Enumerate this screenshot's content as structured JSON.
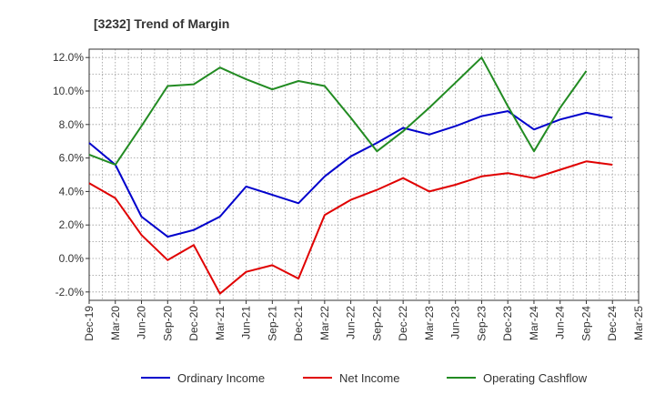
{
  "chart_data": {
    "type": "line",
    "title": "[3232]  Trend of Margin",
    "xlabel": "",
    "ylabel": "",
    "ylim": [
      -2.5,
      12.5
    ],
    "yticks": [
      -2.0,
      0.0,
      2.0,
      4.0,
      6.0,
      8.0,
      10.0,
      12.0
    ],
    "ytick_labels": [
      "-2.0%",
      "0.0%",
      "2.0%",
      "4.0%",
      "6.0%",
      "8.0%",
      "10.0%",
      "12.0%"
    ],
    "categories": [
      "Dec-19",
      "Mar-20",
      "Jun-20",
      "Sep-20",
      "Dec-20",
      "Mar-21",
      "Jun-21",
      "Sep-21",
      "Dec-21",
      "Mar-22",
      "Jun-22",
      "Sep-22",
      "Dec-22",
      "Mar-23",
      "Jun-23",
      "Sep-23",
      "Dec-23",
      "Mar-24",
      "Jun-24",
      "Sep-24",
      "Dec-24",
      "Mar-25"
    ],
    "grid": true,
    "legend_position": "bottom",
    "series": [
      {
        "name": "Ordinary Income",
        "color": "#0000cc",
        "values": [
          6.9,
          5.6,
          2.5,
          1.3,
          1.7,
          2.5,
          4.3,
          3.8,
          3.3,
          4.9,
          6.1,
          6.9,
          7.8,
          7.4,
          7.9,
          8.5,
          8.8,
          7.7,
          8.3,
          8.7,
          8.4,
          null
        ]
      },
      {
        "name": "Net Income",
        "color": "#e00000",
        "values": [
          4.5,
          3.6,
          1.4,
          -0.1,
          0.8,
          -2.1,
          -0.8,
          -0.4,
          -1.2,
          2.6,
          3.5,
          4.1,
          4.8,
          4.0,
          4.4,
          4.9,
          5.1,
          4.8,
          5.3,
          5.8,
          5.6,
          null
        ]
      },
      {
        "name": "Operating Cashflow",
        "color": "#228b22",
        "values": [
          6.2,
          5.6,
          7.9,
          10.3,
          10.4,
          11.4,
          10.7,
          10.1,
          10.6,
          10.3,
          8.4,
          6.4,
          7.6,
          9.0,
          10.5,
          12.0,
          9.1,
          6.4,
          9.0,
          11.2,
          null,
          null
        ]
      }
    ]
  }
}
